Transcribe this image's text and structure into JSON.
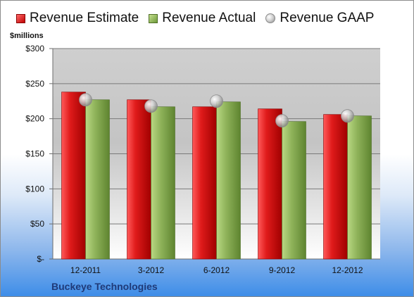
{
  "chart_data": {
    "type": "bar",
    "ylabel": "$millions",
    "company": "Buckeye Technologies",
    "categories": [
      "12-2011",
      "3-2012",
      "6-2012",
      "9-2012",
      "12-2012"
    ],
    "series": [
      {
        "name": "Revenue Estimate",
        "kind": "bar",
        "color": "#cc1111",
        "values": [
          238,
          227,
          217,
          214,
          206
        ]
      },
      {
        "name": "Revenue Actual",
        "kind": "bar",
        "color": "#8fb35a",
        "values": [
          227,
          217,
          224,
          196,
          204
        ]
      },
      {
        "name": "Revenue GAAP",
        "kind": "marker",
        "color": "#bfbfbf",
        "values": [
          227,
          218,
          225,
          197,
          204
        ]
      }
    ],
    "ylim": [
      0,
      300
    ],
    "yticks": [
      0,
      50,
      100,
      150,
      200,
      250,
      300
    ],
    "ytick_labels": [
      "$-",
      "$50",
      "$100",
      "$150",
      "$200",
      "$250",
      "$300"
    ],
    "grid": true,
    "legend_position": "top"
  }
}
